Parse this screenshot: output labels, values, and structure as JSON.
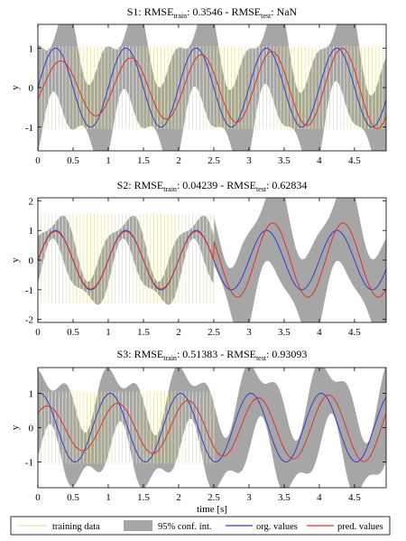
{
  "colors": {
    "training": "#e8e8a8",
    "conf": "#a6a6a6",
    "org": "#3a3ad0",
    "pred": "#e03030",
    "axis": "#000000"
  },
  "legend": {
    "training": "training data",
    "conf": "95% conf. int.",
    "org": "org. values",
    "pred": "pred. values"
  },
  "chart_data": [
    {
      "type": "line",
      "title": {
        "prefix": "S1: RMSE",
        "sub1": "train",
        "mid": ": 0.3546 - RMSE",
        "sub2": "test",
        "suffix": ": NaN"
      },
      "xlabel": "",
      "ylabel": "y",
      "xlim": [
        0,
        4.95
      ],
      "ylim": [
        -1.6,
        1.6
      ],
      "xticks": [
        0,
        0.5,
        1,
        1.5,
        2,
        2.5,
        3,
        3.5,
        4,
        4.5
      ],
      "xticklabels": [
        "0",
        "0.5",
        "1",
        "1.5",
        "2",
        "2.5",
        "3",
        "3.5",
        "4",
        "4.5"
      ],
      "yticks": [
        -1,
        0,
        1
      ],
      "yticklabels": [
        "-1",
        "0",
        "1"
      ],
      "training": {
        "x_start": 0.05,
        "x_end": 4.95,
        "step": 0.05,
        "y_low": -1.05,
        "y_high": 1.05
      },
      "org": {
        "amplitude": 1.0,
        "frequency": 1.0,
        "phase": 0.0
      },
      "pred": {
        "amplitude": 0.65,
        "amplitude_slope": 0.08,
        "frequency": 1.0,
        "phase": -0.45
      },
      "conf": {
        "half_width_base": 1.05,
        "half_width_amp": 0.45,
        "frequency": 1.0,
        "phase": 0.8
      }
    },
    {
      "type": "line",
      "title": {
        "prefix": "S2: RMSE",
        "sub1": "train",
        "mid": ": 0.04239 - RMSE",
        "sub2": "test",
        "suffix": ": 0.62834"
      },
      "xlabel": "",
      "ylabel": "y",
      "xlim": [
        0,
        4.95
      ],
      "ylim": [
        -2.1,
        2.1
      ],
      "xticks": [
        0,
        0.5,
        1,
        1.5,
        2,
        2.5,
        3,
        3.5,
        4,
        4.5
      ],
      "xticklabels": [
        "0",
        "0.5",
        "1",
        "1.5",
        "2",
        "2.5",
        "3",
        "3.5",
        "4",
        "4.5"
      ],
      "yticks": [
        -2,
        -1,
        0,
        1,
        2
      ],
      "yticklabels": [
        "-2",
        "-1",
        "0",
        "1",
        "2"
      ],
      "training": {
        "x_start": 0.05,
        "x_end": 2.5,
        "step": 0.05,
        "y_low": -1.45,
        "y_high": 1.55
      },
      "org": {
        "amplitude": 1.0,
        "frequency": 1.0,
        "phase": 0.0
      },
      "pred": {
        "amplitude": 0.97,
        "amplitude_slope": 0.0,
        "frequency": 1.0,
        "phase": 0.0,
        "test_start": 2.5,
        "test_amplitude": 1.25,
        "test_phase": -0.55
      },
      "conf": {
        "half_width_base": 0.55,
        "half_width_amp": 0.35,
        "frequency": 1.0,
        "phase": 0.8,
        "test_start": 2.5,
        "test_half_width": 0.9
      }
    },
    {
      "type": "line",
      "title": {
        "prefix": "S3: RMSE",
        "sub1": "train",
        "mid": ": 0.51383 - RMSE",
        "sub2": "test",
        "suffix": ": 0.93093"
      },
      "xlabel": "time [s]",
      "ylabel": "y",
      "xlim": [
        0,
        4.95
      ],
      "ylim": [
        -1.75,
        1.75
      ],
      "xticks": [
        0,
        0.5,
        1,
        1.5,
        2,
        2.5,
        3,
        3.5,
        4,
        4.5
      ],
      "xticklabels": [
        "0",
        "0.5",
        "1",
        "1.5",
        "2",
        "2.5",
        "3",
        "3.5",
        "4",
        "4.5"
      ],
      "yticks": [
        -1,
        0,
        1
      ],
      "yticklabels": [
        "-1",
        "0",
        "1"
      ],
      "training": {
        "x_start": 0.05,
        "x_end": 2.5,
        "step": 0.05,
        "y_low": -1.05,
        "y_high": 1.05
      },
      "org": {
        "amplitude": 1.0,
        "frequency": 1.0,
        "phase": 1.4
      },
      "pred": {
        "amplitude": 0.62,
        "amplitude_slope": 0.08,
        "frequency": 1.0,
        "phase": 0.75
      },
      "conf": {
        "half_width_base": 0.95,
        "half_width_amp": 0.45,
        "frequency": 1.0,
        "phase": 0.8
      }
    }
  ]
}
